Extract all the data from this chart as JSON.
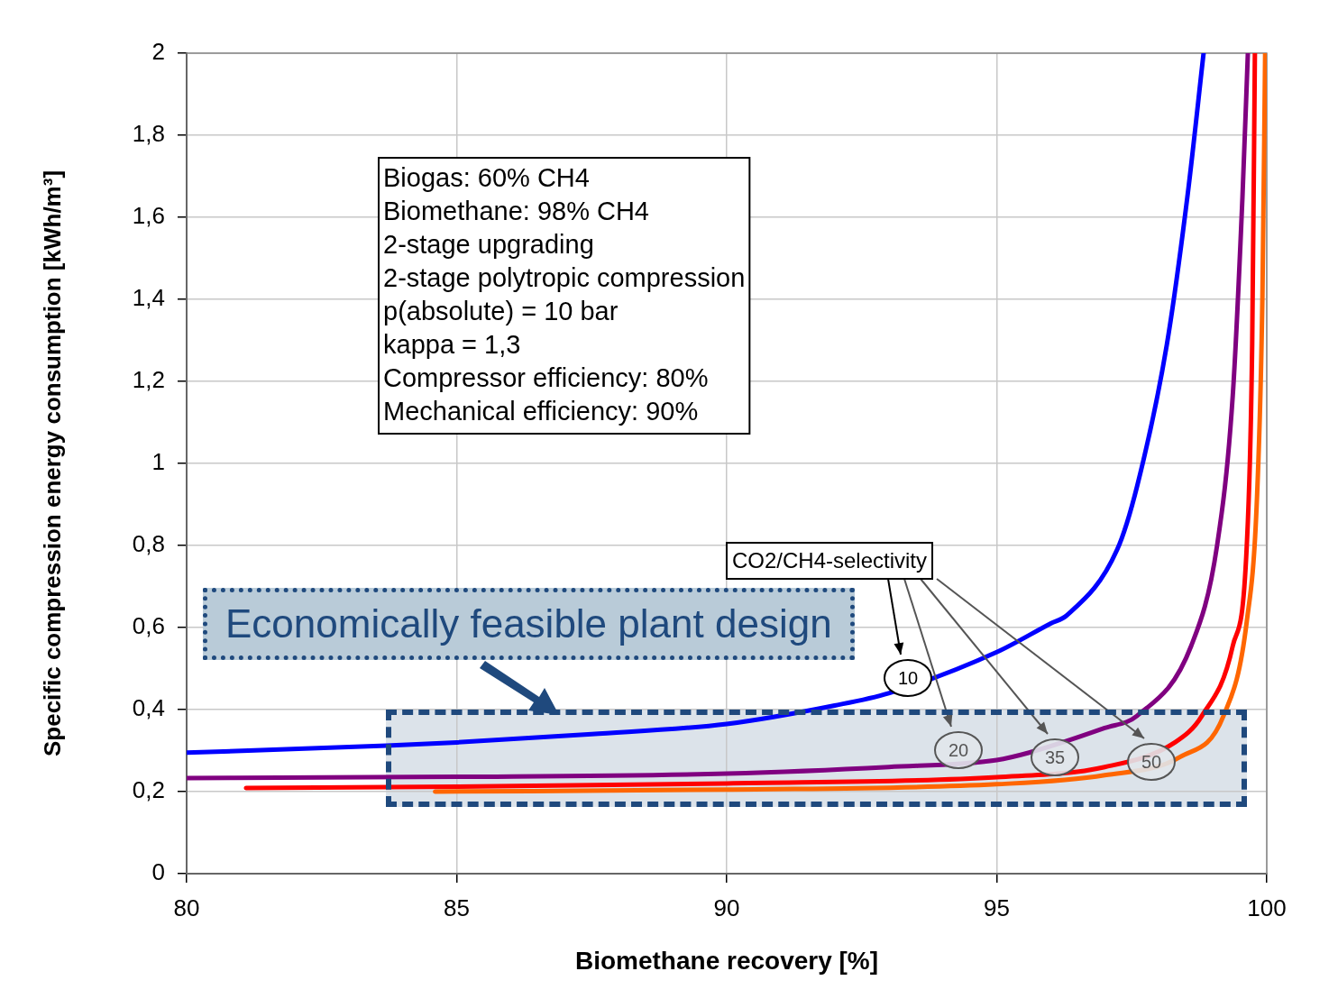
{
  "chart_data": {
    "type": "line",
    "xlabel": "Biomethane recovery [%]",
    "ylabel": "Specific compression energy consumption [kWh/m³]",
    "xlim": [
      80,
      100
    ],
    "xticks": [
      80,
      85,
      90,
      95,
      100
    ],
    "ylim": [
      0,
      2
    ],
    "yticks": [
      0,
      {
        "value": 0.2,
        "label": "0,2"
      },
      {
        "value": 0.4,
        "label": "0,4"
      },
      {
        "value": 0.6,
        "label": "0,6"
      },
      {
        "value": 0.8,
        "label": "0,8"
      },
      1,
      {
        "value": 1.2,
        "label": "1,2"
      },
      {
        "value": 1.4,
        "label": "1,4"
      },
      {
        "value": 1.6,
        "label": "1,6"
      },
      {
        "value": 1.8,
        "label": "1,8"
      },
      2
    ],
    "grid": true,
    "legend": false,
    "marker": "none",
    "line_style": "solid",
    "series": [
      {
        "color": "#0000ff",
        "x": [
          80,
          83.7,
          85,
          87.5,
          90,
          92,
          93,
          95,
          96,
          96.3,
          97.23,
          97.6,
          98.15,
          98.53,
          98.83
        ],
        "values": [
          0.295,
          0.312,
          0.32,
          0.34,
          0.365,
          0.41,
          0.44,
          0.54,
          0.61,
          0.63,
          0.79,
          0.945,
          1.29,
          1.65,
          2.0
        ]
      },
      {
        "color": "#800080",
        "x": [
          80,
          85,
          90,
          93,
          95,
          95.6,
          97,
          97.6,
          98.6,
          99.08,
          99.37,
          99.55,
          99.65
        ],
        "values": [
          0.233,
          0.236,
          0.244,
          0.26,
          0.277,
          0.295,
          0.355,
          0.385,
          0.555,
          0.8,
          1.165,
          1.65,
          2.0
        ]
      },
      {
        "color": "#ff0000",
        "x": [
          81.1,
          85,
          90,
          95,
          97,
          98.3,
          98.8,
          99.37,
          99.63,
          99.73,
          99.78
        ],
        "values": [
          0.209,
          0.212,
          0.22,
          0.235,
          0.26,
          0.32,
          0.385,
          0.555,
          0.8,
          1.29,
          2.0
        ]
      },
      {
        "color": "#ff6600",
        "x": [
          84.6,
          90,
          95,
          97,
          98.4,
          99.2,
          99.63,
          99.82,
          99.92,
          99.97
        ],
        "values": [
          0.2,
          0.205,
          0.218,
          0.24,
          0.285,
          0.385,
          0.615,
          0.92,
          1.41,
          2.0
        ]
      }
    ],
    "annotations": [
      "Biogas: 60% CH4\nBiomethane: 98% CH4\n2-stage upgrading\n2-stage polytropic compression\np(absolute) = 10 bar\nkappa = 1,3\nCompressor efficiency: 80%\nMechanical efficiency: 90%",
      "Economically feasible plant design",
      "CO2/CH4-selectivity",
      "10",
      "20",
      "35",
      "50"
    ]
  }
}
